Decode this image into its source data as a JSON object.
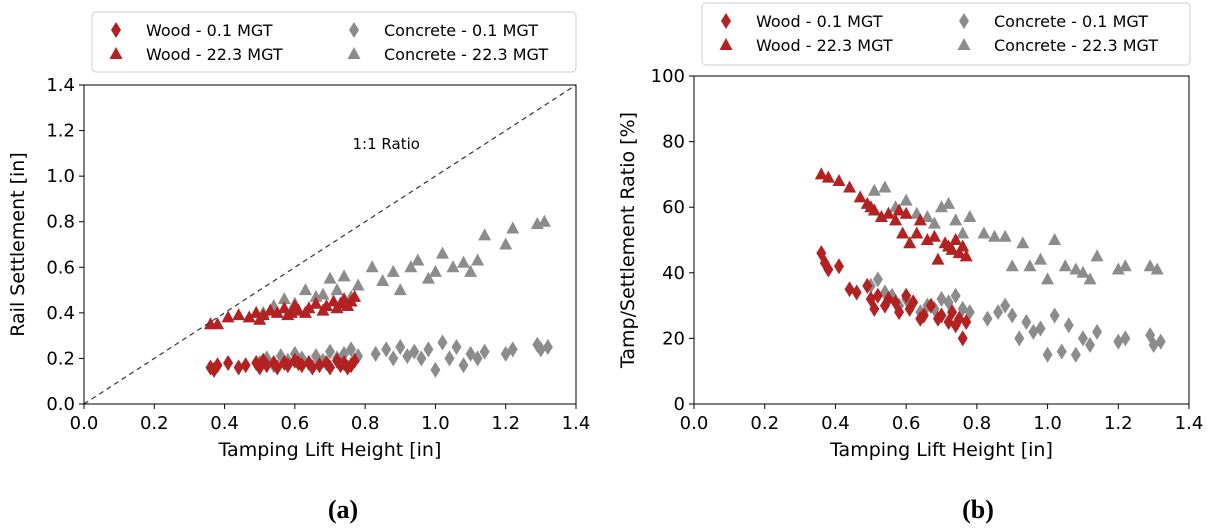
{
  "chart_data": [
    {
      "type": "scatter",
      "panel_label": "(a)",
      "xlabel": "Tamping Lift Height [in]",
      "ylabel": "Rail Settlement [in]",
      "xlim": [
        0.0,
        1.4
      ],
      "ylim": [
        0.0,
        1.4
      ],
      "xticks": [
        "0.0",
        "0.2",
        "0.4",
        "0.6",
        "0.8",
        "1.0",
        "1.2",
        "1.4"
      ],
      "yticks": [
        "0.0",
        "0.2",
        "0.4",
        "0.6",
        "0.8",
        "1.0",
        "1.2",
        "1.4"
      ],
      "grid": false,
      "legend_position": "top",
      "reference_line": {
        "label": "1:1 Ratio",
        "style": "dashed",
        "x": [
          0.0,
          1.4
        ],
        "y": [
          0.0,
          1.4
        ]
      },
      "series": [
        {
          "name": "Wood - 0.1 MGT",
          "marker": "diamond",
          "color": "#b22222",
          "x": [
            0.36,
            0.37,
            0.38,
            0.41,
            0.44,
            0.46,
            0.49,
            0.5,
            0.51,
            0.52,
            0.54,
            0.55,
            0.57,
            0.58,
            0.6,
            0.61,
            0.62,
            0.64,
            0.65,
            0.67,
            0.69,
            0.7,
            0.72,
            0.73,
            0.74,
            0.75,
            0.76,
            0.77
          ],
          "y": [
            0.16,
            0.15,
            0.17,
            0.18,
            0.16,
            0.17,
            0.18,
            0.16,
            0.19,
            0.17,
            0.18,
            0.16,
            0.18,
            0.17,
            0.19,
            0.18,
            0.17,
            0.18,
            0.16,
            0.17,
            0.18,
            0.16,
            0.19,
            0.17,
            0.18,
            0.16,
            0.17,
            0.19
          ]
        },
        {
          "name": "Wood - 22.3 MGT",
          "marker": "triangle",
          "color": "#b22222",
          "x": [
            0.36,
            0.38,
            0.41,
            0.44,
            0.47,
            0.49,
            0.5,
            0.51,
            0.53,
            0.55,
            0.57,
            0.58,
            0.59,
            0.6,
            0.61,
            0.63,
            0.64,
            0.66,
            0.68,
            0.69,
            0.71,
            0.72,
            0.73,
            0.74,
            0.75,
            0.76,
            0.77
          ],
          "y": [
            0.35,
            0.35,
            0.38,
            0.39,
            0.38,
            0.4,
            0.37,
            0.39,
            0.41,
            0.4,
            0.42,
            0.39,
            0.4,
            0.43,
            0.41,
            0.4,
            0.42,
            0.44,
            0.41,
            0.43,
            0.45,
            0.42,
            0.44,
            0.46,
            0.43,
            0.45,
            0.47
          ]
        },
        {
          "name": "Concrete - 0.1 MGT",
          "marker": "diamond",
          "color": "#8c8c8c",
          "x": [
            0.5,
            0.52,
            0.54,
            0.56,
            0.58,
            0.6,
            0.62,
            0.64,
            0.66,
            0.68,
            0.7,
            0.72,
            0.74,
            0.76,
            0.78,
            0.83,
            0.86,
            0.88,
            0.9,
            0.92,
            0.94,
            0.96,
            0.98,
            1.0,
            1.02,
            1.04,
            1.06,
            1.08,
            1.1,
            1.12,
            1.14,
            1.2,
            1.22,
            1.29,
            1.3,
            1.32
          ],
          "y": [
            0.18,
            0.2,
            0.17,
            0.21,
            0.19,
            0.22,
            0.2,
            0.18,
            0.21,
            0.19,
            0.23,
            0.2,
            0.22,
            0.24,
            0.21,
            0.22,
            0.24,
            0.2,
            0.25,
            0.21,
            0.23,
            0.2,
            0.24,
            0.15,
            0.27,
            0.2,
            0.25,
            0.17,
            0.22,
            0.2,
            0.23,
            0.22,
            0.24,
            0.26,
            0.24,
            0.25
          ]
        },
        {
          "name": "Concrete - 22.3 MGT",
          "marker": "triangle",
          "color": "#8c8c8c",
          "x": [
            0.51,
            0.54,
            0.57,
            0.6,
            0.63,
            0.66,
            0.68,
            0.7,
            0.72,
            0.74,
            0.76,
            0.78,
            0.82,
            0.85,
            0.88,
            0.9,
            0.93,
            0.95,
            0.98,
            1.0,
            1.02,
            1.05,
            1.08,
            1.1,
            1.12,
            1.14,
            1.2,
            1.22,
            1.29,
            1.31
          ],
          "y": [
            0.4,
            0.43,
            0.46,
            0.44,
            0.5,
            0.47,
            0.48,
            0.55,
            0.5,
            0.56,
            0.47,
            0.52,
            0.6,
            0.54,
            0.58,
            0.5,
            0.6,
            0.63,
            0.55,
            0.58,
            0.66,
            0.6,
            0.62,
            0.58,
            0.63,
            0.74,
            0.7,
            0.77,
            0.79,
            0.8
          ]
        }
      ]
    },
    {
      "type": "scatter",
      "panel_label": "(b)",
      "xlabel": "Tamping Lift Height [in]",
      "ylabel": "Tamp/Settlement Ratio [%]",
      "xlim": [
        0.0,
        1.4
      ],
      "ylim": [
        0,
        100
      ],
      "xticks": [
        "0.0",
        "0.2",
        "0.4",
        "0.6",
        "0.8",
        "1.0",
        "1.2",
        "1.4"
      ],
      "yticks": [
        "0",
        "20",
        "40",
        "60",
        "80",
        "100"
      ],
      "grid": false,
      "legend_position": "top",
      "series": [
        {
          "name": "Wood - 0.1 MGT",
          "marker": "diamond",
          "color": "#b22222",
          "x": [
            0.36,
            0.37,
            0.38,
            0.41,
            0.44,
            0.46,
            0.49,
            0.5,
            0.51,
            0.52,
            0.54,
            0.55,
            0.57,
            0.58,
            0.6,
            0.61,
            0.62,
            0.64,
            0.65,
            0.67,
            0.69,
            0.7,
            0.72,
            0.73,
            0.74,
            0.75,
            0.76,
            0.77
          ],
          "y": [
            46,
            43,
            41,
            42,
            35,
            34,
            36,
            32,
            29,
            33,
            30,
            32,
            31,
            28,
            33,
            29,
            31,
            26,
            27,
            30,
            26,
            27,
            25,
            28,
            24,
            26,
            20,
            25
          ]
        },
        {
          "name": "Wood - 22.3 MGT",
          "marker": "triangle",
          "color": "#b22222",
          "x": [
            0.36,
            0.38,
            0.41,
            0.44,
            0.47,
            0.49,
            0.5,
            0.51,
            0.53,
            0.55,
            0.57,
            0.58,
            0.59,
            0.6,
            0.61,
            0.63,
            0.64,
            0.66,
            0.68,
            0.69,
            0.71,
            0.72,
            0.73,
            0.74,
            0.75,
            0.76,
            0.77
          ],
          "y": [
            70,
            69,
            68,
            66,
            63,
            61,
            60,
            59,
            57,
            58,
            56,
            59,
            52,
            58,
            49,
            52,
            56,
            50,
            51,
            44,
            49,
            48,
            47,
            50,
            46,
            48,
            45
          ]
        },
        {
          "name": "Concrete - 0.1 MGT",
          "marker": "diamond",
          "color": "#8c8c8c",
          "x": [
            0.5,
            0.52,
            0.54,
            0.56,
            0.58,
            0.6,
            0.62,
            0.64,
            0.66,
            0.68,
            0.7,
            0.72,
            0.74,
            0.76,
            0.78,
            0.83,
            0.86,
            0.88,
            0.9,
            0.92,
            0.94,
            0.96,
            0.98,
            1.0,
            1.02,
            1.04,
            1.06,
            1.08,
            1.1,
            1.12,
            1.14,
            1.2,
            1.22,
            1.29,
            1.3,
            1.32
          ],
          "y": [
            36,
            38,
            34,
            33,
            30,
            32,
            31,
            28,
            30,
            29,
            32,
            31,
            33,
            29,
            28,
            26,
            28,
            30,
            27,
            20,
            25,
            22,
            23,
            15,
            27,
            16,
            24,
            15,
            20,
            18,
            22,
            19,
            20,
            21,
            18,
            19
          ]
        },
        {
          "name": "Concrete - 22.3 MGT",
          "marker": "triangle",
          "color": "#8c8c8c",
          "x": [
            0.51,
            0.54,
            0.57,
            0.6,
            0.63,
            0.66,
            0.68,
            0.7,
            0.72,
            0.74,
            0.76,
            0.78,
            0.82,
            0.85,
            0.88,
            0.9,
            0.93,
            0.95,
            0.98,
            1.0,
            1.02,
            1.05,
            1.08,
            1.1,
            1.12,
            1.14,
            1.2,
            1.22,
            1.29,
            1.31
          ],
          "y": [
            65,
            66,
            60,
            62,
            58,
            57,
            55,
            60,
            61,
            56,
            52,
            57,
            52,
            51,
            51,
            42,
            49,
            42,
            44,
            38,
            50,
            42,
            41,
            40,
            38,
            45,
            41,
            42,
            42,
            41
          ]
        }
      ]
    }
  ]
}
